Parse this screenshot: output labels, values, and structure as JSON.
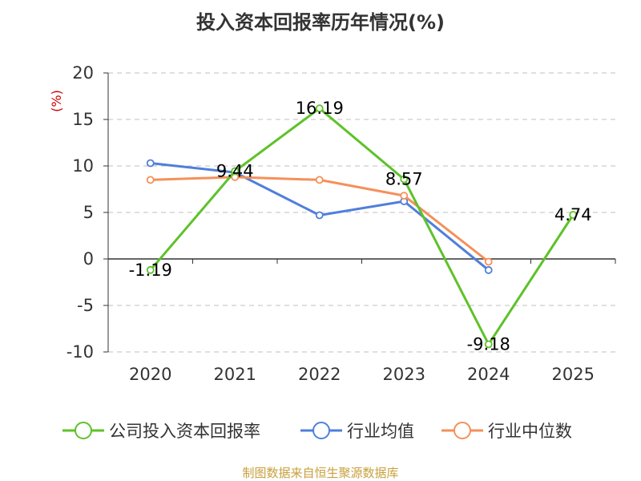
{
  "chart_data": {
    "type": "line",
    "title": "投入资本回报率历年情况(%)",
    "ylabel": "(%)",
    "categories": [
      "2020",
      "2021",
      "2022",
      "2023",
      "2024",
      "2025"
    ],
    "yticks": [
      "20",
      "15",
      "10",
      "5",
      "0",
      "-5",
      "-10"
    ],
    "ylim": [
      -10,
      20
    ],
    "grid": true,
    "legend_position": "bottom",
    "series": [
      {
        "name": "公司投入资本回报率",
        "color": "#5ec22a",
        "values": [
          -1.19,
          9.44,
          16.19,
          8.57,
          -9.18,
          4.74
        ],
        "labels": [
          "-1.19",
          "9.44",
          "16.19",
          "8.57",
          "-9.18",
          "4.74"
        ]
      },
      {
        "name": "行业均值",
        "color": "#4f7fdb",
        "values": [
          10.3,
          9.3,
          4.7,
          6.2,
          -1.2,
          null
        ]
      },
      {
        "name": "行业中位数",
        "color": "#f5905a",
        "values": [
          8.5,
          8.8,
          8.5,
          6.8,
          -0.3,
          null
        ]
      }
    ]
  },
  "source": "制图数据来自恒生聚源数据库",
  "colors": {
    "axis": "#333333",
    "grid": "#cccccc",
    "ylabel": "#cc0000",
    "source": "#c8a03c"
  }
}
